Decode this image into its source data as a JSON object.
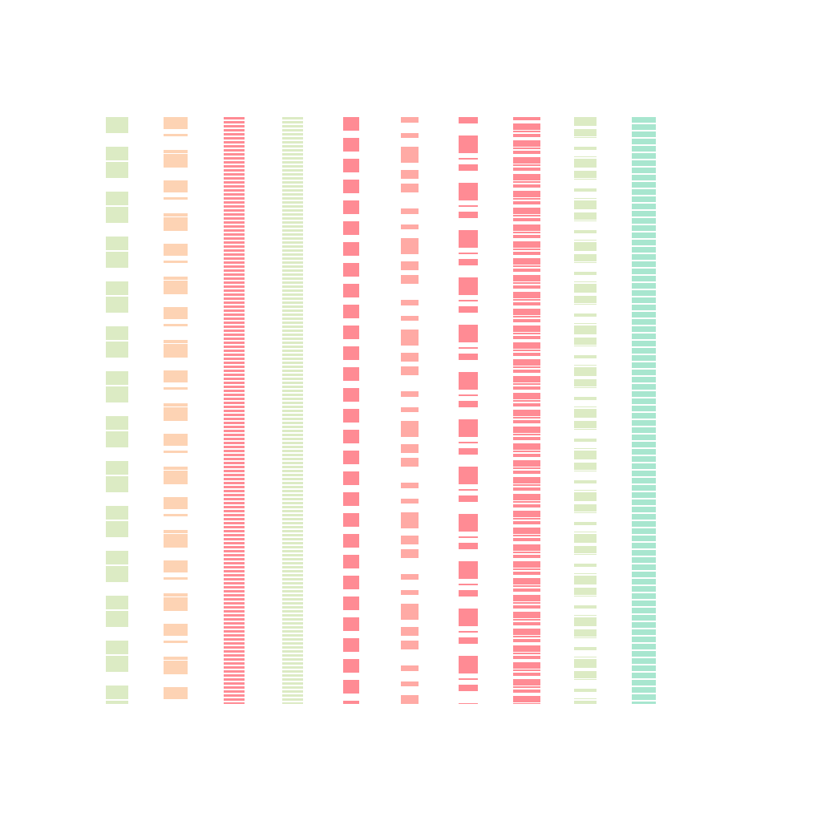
{
  "columns": [
    {
      "id": "column-1",
      "color": "#dcebc4"
    },
    {
      "id": "column-2",
      "color": "#fdd3b4"
    },
    {
      "id": "column-3",
      "color": "#ff8b94"
    },
    {
      "id": "column-4",
      "color": "#dcebc4"
    },
    {
      "id": "column-5",
      "color": "#ff8b94"
    },
    {
      "id": "column-6",
      "color": "#ffaaa5"
    },
    {
      "id": "column-7",
      "color": "#ff8b94"
    },
    {
      "id": "column-8",
      "color": "#ff8b94"
    },
    {
      "id": "column-9",
      "color": "#dcebc4"
    },
    {
      "id": "column-10",
      "color": "#a8e6cf"
    }
  ]
}
